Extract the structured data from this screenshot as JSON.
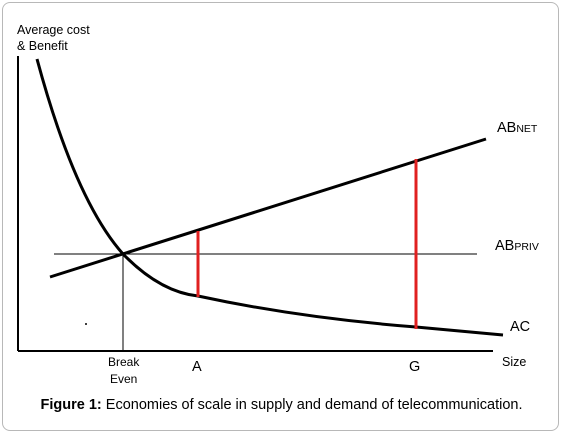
{
  "figure": {
    "y_axis_label_line1": "Average cost",
    "y_axis_label_line2": "& Benefit",
    "x_axis_label": "Size",
    "curve_labels": {
      "ab_net_main": "AB",
      "ab_net_sub": "NET",
      "ab_priv_main": "AB",
      "ab_priv_sub": "PRIV",
      "ac": "AC"
    },
    "x_ticks": {
      "break_line1": "Break",
      "break_line2": "Even",
      "a": "A",
      "g": "G"
    },
    "colors": {
      "lines": "#000000",
      "gap_markers": "#e02020"
    }
  },
  "caption": {
    "label": "Figure 1:",
    "text": " Economies of scale in supply and demand of telecommunication."
  }
}
